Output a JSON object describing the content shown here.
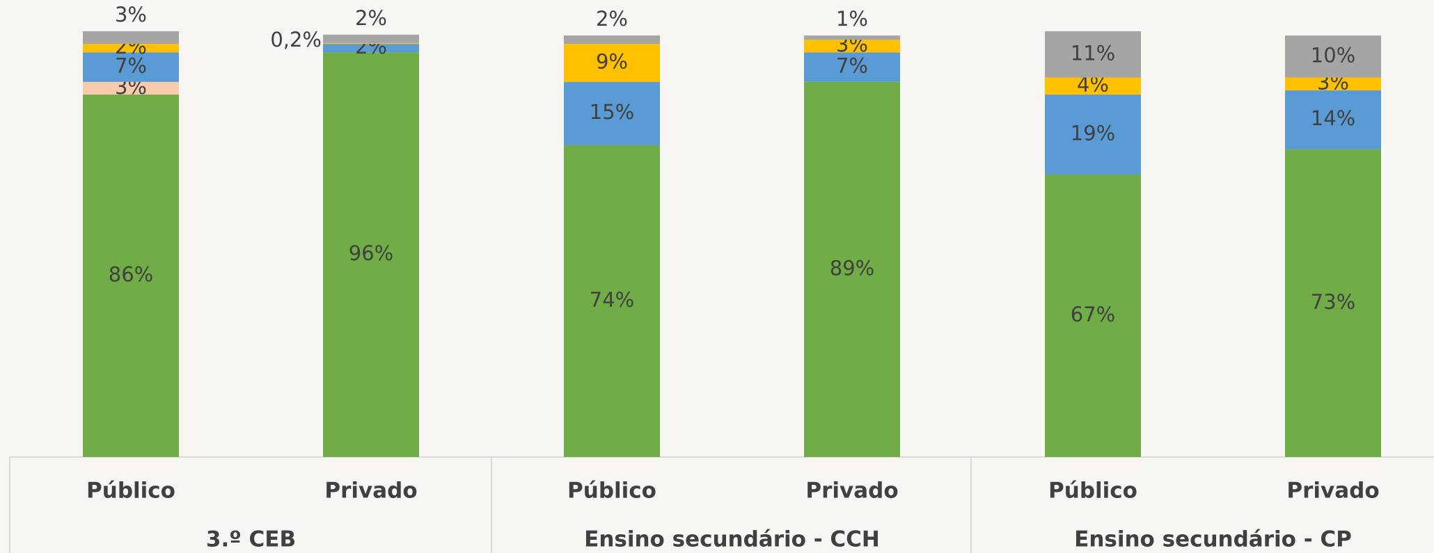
{
  "chart_data": {
    "type": "stacked_bar",
    "categories": [
      "Público",
      "Privado",
      "Público",
      "Privado",
      "Público",
      "Privado"
    ],
    "groups": [
      "3.º CEB",
      "Ensino secundário - CCH",
      "Ensino secundário - CP"
    ],
    "ylim": [
      0,
      100
    ],
    "series": [
      {
        "color": "#70ad47",
        "values": [
          86,
          96,
          74,
          89,
          67,
          73
        ],
        "value_labels": [
          "86%",
          "96%",
          "74%",
          "89%",
          "67%",
          "73%"
        ]
      },
      {
        "color": "#f8cbad",
        "values": [
          3,
          null,
          null,
          null,
          null,
          null
        ],
        "value_labels": [
          "3%",
          null,
          null,
          null,
          null,
          null
        ]
      },
      {
        "color": "#5b9bd5",
        "values": [
          7,
          2,
          15,
          7,
          19,
          14
        ],
        "value_labels": [
          "7%",
          "2%",
          "15%",
          "7%",
          "19%",
          "14%"
        ]
      },
      {
        "color": "#ffc000",
        "values": [
          2,
          0.2,
          9,
          3,
          4,
          3
        ],
        "value_labels": [
          "2%",
          "0,2%",
          "9%",
          "3%",
          "4%",
          "3%"
        ]
      },
      {
        "color": "#a5a5a5",
        "values": [
          3,
          2,
          2,
          1,
          11,
          10
        ],
        "value_labels": [
          "3%",
          "2%",
          "2%",
          "1%",
          "11%",
          "10%"
        ]
      }
    ]
  }
}
